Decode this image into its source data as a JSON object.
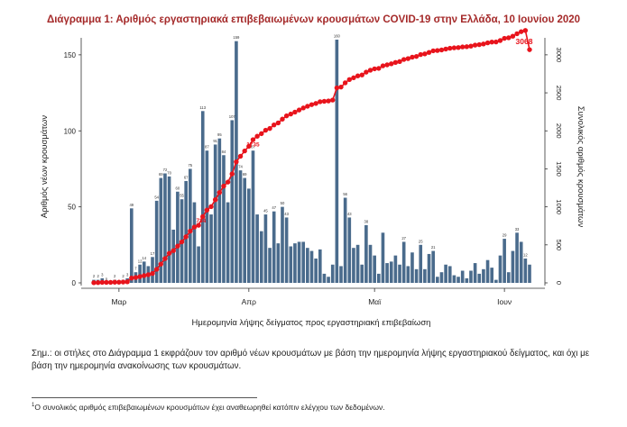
{
  "chart_data": {
    "type": "bar+line",
    "title": "Διάγραμμα 1: Αριθμός εργαστηριακά επιβεβαιωμένων κρουσμάτων COVID-19 στην Ελλάδα, 10 Ιουνίου 2020",
    "xlabel": "Ημερομηνία λήψης δείγματος προς εργαστηριακή επιβεβαίωση",
    "ylabel_left": "Αριθμός νέων κρουσμάτων",
    "ylabel_right": "Συνολικός αριθμός κρουσμάτων",
    "ylim_left": [
      0,
      160
    ],
    "ylim_right": [
      0,
      3200
    ],
    "yticks_left": [
      "0",
      "50",
      "100",
      "150"
    ],
    "yticks_right": [
      "0",
      "500",
      "1000",
      "1500",
      "2000",
      "2500",
      "3000"
    ],
    "xticks": [
      {
        "day": 6,
        "label": "Μαρ"
      },
      {
        "day": 37,
        "label": "Απρ"
      },
      {
        "day": 67,
        "label": "Μαϊ"
      },
      {
        "day": 98,
        "label": "Ιουν"
      }
    ],
    "first_date": "2020-02-25",
    "daily_new_cases": [
      2,
      2,
      3,
      0,
      0,
      2,
      0,
      2,
      3,
      49,
      7,
      12,
      14,
      11,
      17,
      54,
      69,
      72,
      70,
      35,
      60,
      55,
      67,
      75,
      53,
      24,
      113,
      87,
      45,
      91,
      95,
      84,
      53,
      107,
      159,
      74,
      69,
      62,
      87,
      45,
      34,
      45,
      23,
      47,
      26,
      50,
      43,
      24,
      26,
      27,
      27,
      23,
      21,
      16,
      22,
      6,
      4,
      12,
      160,
      11,
      56,
      43,
      23,
      25,
      12,
      38,
      25,
      18,
      6,
      33,
      13,
      14,
      18,
      12,
      27,
      11,
      20,
      9,
      25,
      9,
      19,
      21,
      4,
      7,
      12,
      11,
      5,
      4,
      8,
      3,
      8,
      13,
      6,
      9,
      15,
      10,
      2,
      18,
      29,
      7,
      21,
      33,
      27,
      16,
      12
    ],
    "cumulative": [
      2,
      4,
      7,
      7,
      7,
      9,
      9,
      11,
      14,
      63,
      70,
      82,
      96,
      107,
      124,
      178,
      247,
      319,
      389,
      424,
      484,
      539,
      606,
      681,
      734,
      758,
      871,
      958,
      1003,
      1094,
      1189,
      1273,
      1326,
      1433,
      1592,
      1666,
      1735,
      1797,
      1884,
      1929,
      1963,
      2008,
      2031,
      2078,
      2104,
      2154,
      2197,
      2221,
      2247,
      2274,
      2301,
      2324,
      2345,
      2361,
      2383,
      2389,
      2393,
      2405,
      2565,
      2576,
      2632,
      2675,
      2698,
      2723,
      2735,
      2773,
      2798,
      2816,
      2822,
      2855,
      2868,
      2882,
      2900,
      2912,
      2939,
      2950,
      2970,
      2979,
      3004,
      3013,
      3032,
      3053,
      3057,
      3064,
      3076,
      3087,
      3092,
      3096,
      3104,
      3107,
      3115,
      3128,
      3134,
      3143,
      3158,
      3168,
      3170,
      3188,
      3217,
      3224,
      3245,
      3278,
      3305,
      3321,
      3068
    ],
    "bar_labels": [
      {
        "day": 0,
        "text": "2"
      },
      {
        "day": 1,
        "text": "2"
      },
      {
        "day": 2,
        "text": "3"
      },
      {
        "day": 3,
        "text": "0"
      },
      {
        "day": 5,
        "text": "2"
      },
      {
        "day": 7,
        "text": "2"
      },
      {
        "day": 8,
        "text": "3"
      },
      {
        "day": 9,
        "text": "49"
      },
      {
        "day": 10,
        "text": "7"
      },
      {
        "day": 11,
        "text": "12"
      },
      {
        "day": 12,
        "text": "14"
      },
      {
        "day": 14,
        "text": "17"
      },
      {
        "day": 15,
        "text": "54"
      },
      {
        "day": 16,
        "text": "69"
      },
      {
        "day": 17,
        "text": "72"
      },
      {
        "day": 18,
        "text": "70"
      },
      {
        "day": 20,
        "text": "60"
      },
      {
        "day": 21,
        "text": "55"
      },
      {
        "day": 22,
        "text": "67"
      },
      {
        "day": 23,
        "text": "75"
      },
      {
        "day": 26,
        "text": "113"
      },
      {
        "day": 27,
        "text": "87"
      },
      {
        "day": 29,
        "text": "91"
      },
      {
        "day": 30,
        "text": "95"
      },
      {
        "day": 31,
        "text": "84"
      },
      {
        "day": 33,
        "text": "107"
      },
      {
        "day": 34,
        "text": "159"
      },
      {
        "day": 35,
        "text": "74"
      },
      {
        "day": 36,
        "text": "69"
      },
      {
        "day": 38,
        "text": "87"
      },
      {
        "day": 41,
        "text": "45"
      },
      {
        "day": 43,
        "text": "47"
      },
      {
        "day": 45,
        "text": "50"
      },
      {
        "day": 46,
        "text": "43"
      },
      {
        "day": 58,
        "text": "160"
      },
      {
        "day": 60,
        "text": "56"
      },
      {
        "day": 61,
        "text": "43"
      },
      {
        "day": 65,
        "text": "38"
      },
      {
        "day": 74,
        "text": "27"
      },
      {
        "day": 78,
        "text": "25"
      },
      {
        "day": 81,
        "text": "21"
      },
      {
        "day": 98,
        "text": "29"
      },
      {
        "day": 101,
        "text": "33"
      },
      {
        "day": 103,
        "text": "12"
      }
    ],
    "line_labels": [
      {
        "day": 24,
        "text": "734"
      },
      {
        "day": 36,
        "text": "1735"
      },
      {
        "day": 104,
        "text": "3068"
      }
    ],
    "colors": {
      "bars": "#4a6b8c",
      "line": "#e8141c",
      "title": "#a52a2a",
      "axis": "#333333",
      "grid": "#dddddd"
    }
  },
  "note": "Σημ.: οι στήλες στο Διάγραμμα 1 εκφράζουν τον αριθμό νέων κρουσμάτων με βάση την ημερομηνία λήψης εργαστηριακού δείγματος, και όχι με βάση την ημερομηνία ανακοίνωσης των κρουσμάτων.",
  "footnote": {
    "marker": "1",
    "text": "Ο συνολικός αριθμός επιβεβαιωμένων κρουσμάτων έχει αναθεωρηθεί κατόπιν ελέγχου των δεδομένων."
  }
}
